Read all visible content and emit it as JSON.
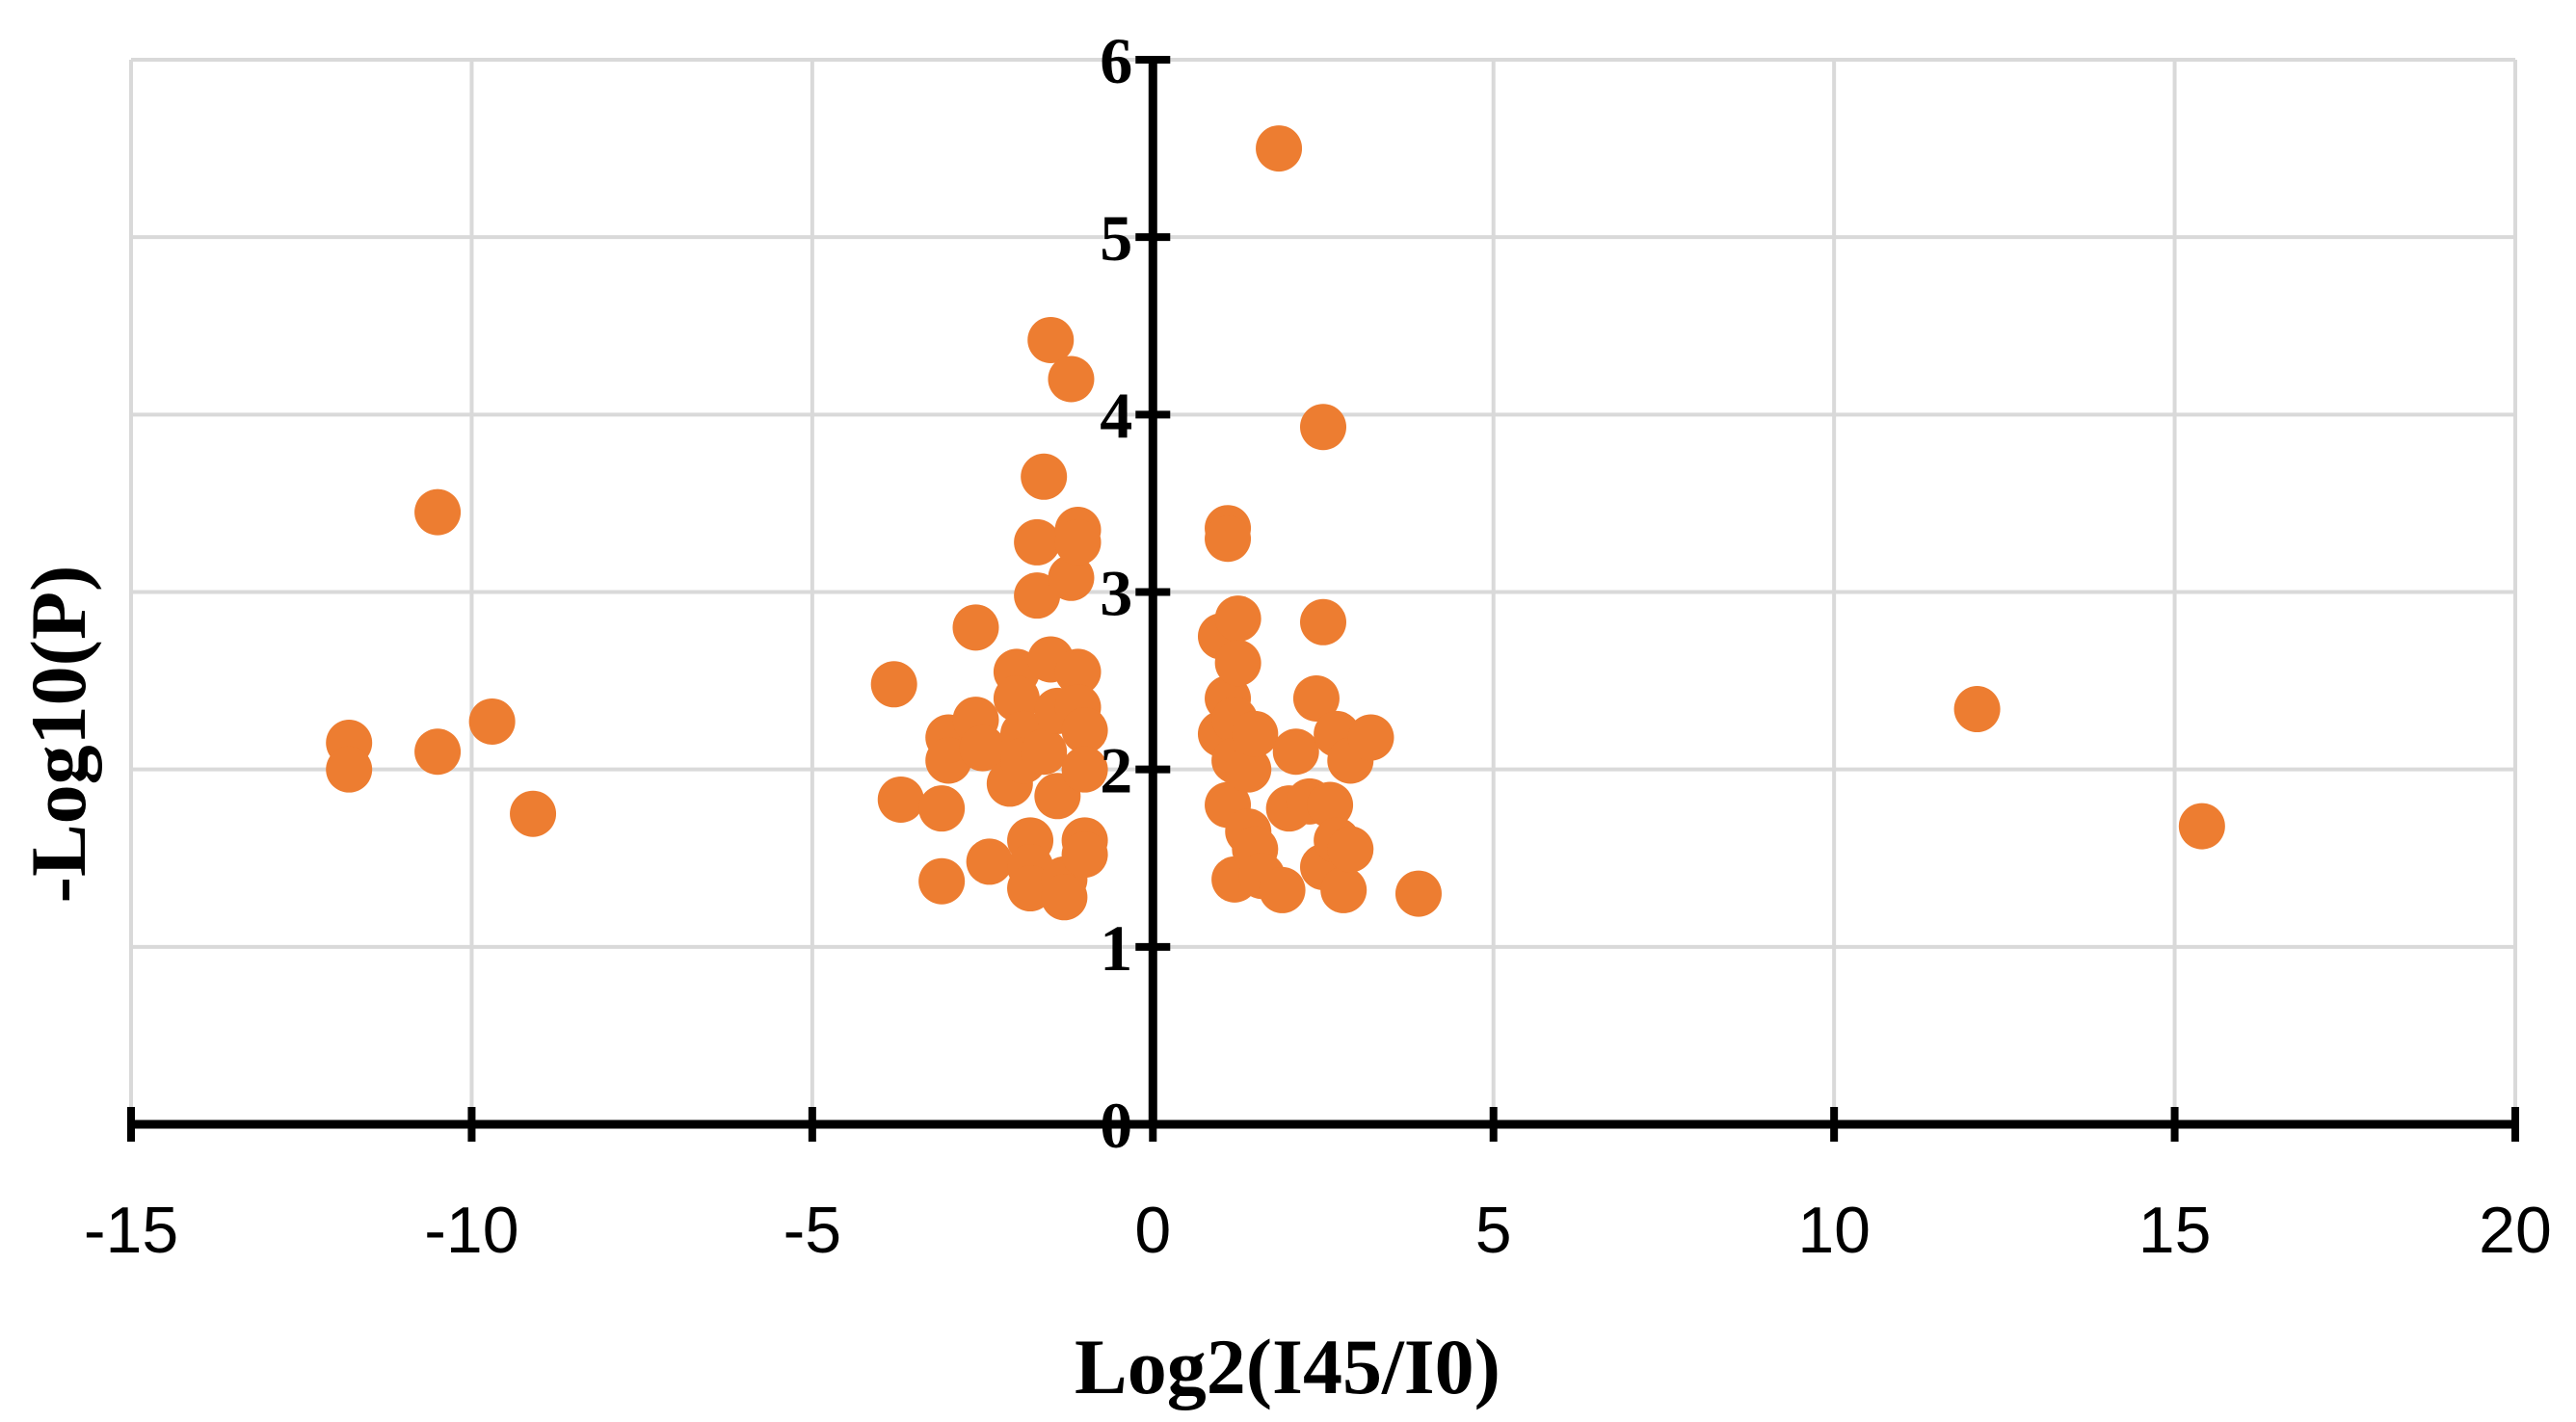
{
  "chart_data": {
    "type": "scatter",
    "title": "",
    "xlabel": "Log2(I45/I0)",
    "ylabel": "-Log10(P)",
    "xlim": [
      -15,
      20
    ],
    "ylim": [
      0,
      6
    ],
    "x_ticks": [
      -15,
      -10,
      -5,
      0,
      5,
      10,
      15,
      20
    ],
    "x_tick_labels": [
      "-15",
      "-10",
      "-5",
      "0",
      "5",
      "10",
      "15",
      "20"
    ],
    "y_ticks": [
      0,
      1,
      2,
      3,
      4,
      5,
      6
    ],
    "y_tick_labels": [
      "0",
      "1",
      "2",
      "3",
      "4",
      "5",
      "6"
    ],
    "grid": true,
    "legend": "none",
    "marker_color": "#ED7D31",
    "grid_color": "#D9D9D9",
    "axis_color": "#000000",
    "series": [
      {
        "points": [
          [
            -11.8,
            2.15
          ],
          [
            -11.8,
            2.0
          ],
          [
            -10.5,
            3.45
          ],
          [
            -10.5,
            2.1
          ],
          [
            -9.7,
            2.27
          ],
          [
            -9.1,
            1.75
          ],
          [
            -3.8,
            2.48
          ],
          [
            -3.7,
            1.83
          ],
          [
            -3.1,
            1.78
          ],
          [
            -3.1,
            1.37
          ],
          [
            -3.0,
            2.18
          ],
          [
            -3.0,
            2.05
          ],
          [
            -2.6,
            2.8
          ],
          [
            -2.6,
            2.28
          ],
          [
            -2.5,
            2.12
          ],
          [
            -2.4,
            1.48
          ],
          [
            -2.1,
            1.92
          ],
          [
            -2.0,
            2.55
          ],
          [
            -2.0,
            2.4
          ],
          [
            -1.9,
            2.2
          ],
          [
            -1.9,
            2.05
          ],
          [
            -1.8,
            1.6
          ],
          [
            -1.8,
            1.45
          ],
          [
            -1.8,
            1.33
          ],
          [
            -1.7,
            3.28
          ],
          [
            -1.7,
            2.98
          ],
          [
            -1.6,
            3.65
          ],
          [
            -1.6,
            2.1
          ],
          [
            -1.5,
            4.42
          ],
          [
            -1.5,
            2.62
          ],
          [
            -1.4,
            2.33
          ],
          [
            -1.4,
            1.85
          ],
          [
            -1.3,
            1.38
          ],
          [
            -1.3,
            1.28
          ],
          [
            -1.2,
            4.2
          ],
          [
            -1.2,
            3.08
          ],
          [
            -1.1,
            3.35
          ],
          [
            -1.1,
            3.28
          ],
          [
            -1.1,
            2.55
          ],
          [
            -1.1,
            2.35
          ],
          [
            -1.0,
            2.22
          ],
          [
            -1.0,
            2.0
          ],
          [
            -1.0,
            1.6
          ],
          [
            -1.0,
            1.52
          ],
          [
            1.0,
            2.75
          ],
          [
            1.0,
            2.2
          ],
          [
            1.1,
            3.36
          ],
          [
            1.1,
            3.3
          ],
          [
            1.1,
            2.4
          ],
          [
            1.1,
            1.8
          ],
          [
            1.2,
            2.28
          ],
          [
            1.2,
            2.05
          ],
          [
            1.2,
            1.38
          ],
          [
            1.25,
            2.85
          ],
          [
            1.25,
            2.6
          ],
          [
            1.4,
            2.0
          ],
          [
            1.4,
            1.65
          ],
          [
            1.5,
            2.2
          ],
          [
            1.5,
            1.55
          ],
          [
            1.6,
            1.4
          ],
          [
            1.85,
            5.5
          ],
          [
            1.9,
            1.32
          ],
          [
            2.0,
            1.78
          ],
          [
            2.1,
            2.1
          ],
          [
            2.3,
            1.82
          ],
          [
            2.4,
            2.4
          ],
          [
            2.5,
            3.93
          ],
          [
            2.5,
            2.83
          ],
          [
            2.5,
            1.45
          ],
          [
            2.6,
            1.8
          ],
          [
            2.7,
            2.2
          ],
          [
            2.7,
            1.6
          ],
          [
            2.8,
            1.32
          ],
          [
            2.9,
            2.05
          ],
          [
            2.9,
            1.55
          ],
          [
            3.2,
            2.18
          ],
          [
            3.9,
            1.3
          ],
          [
            12.1,
            2.34
          ],
          [
            15.4,
            1.68
          ]
        ]
      }
    ]
  }
}
